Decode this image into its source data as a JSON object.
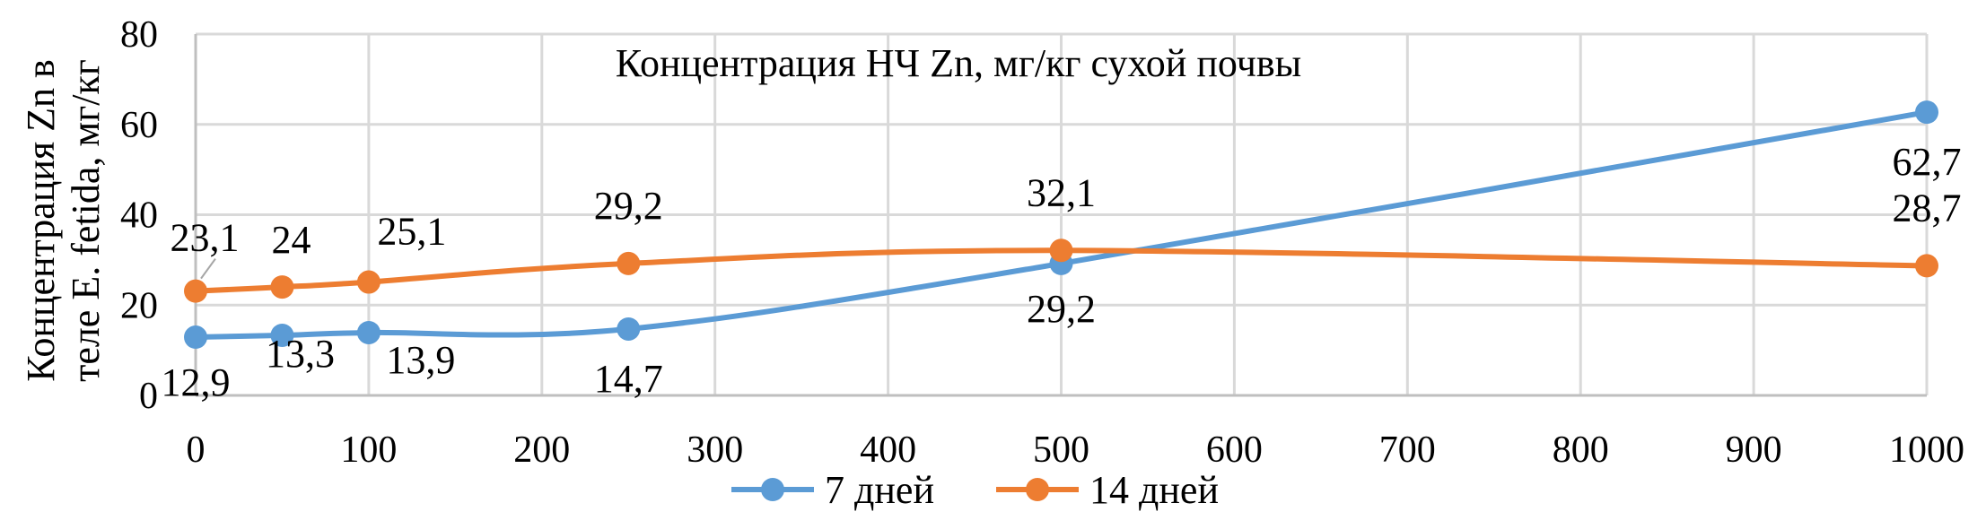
{
  "chart_data": {
    "type": "line",
    "xlabel": "Концентрация НЧ Zn, мг/кг сухой почвы",
    "ylabel": [
      "Концентрация Zn в",
      "теле E. fetida, мг/кг"
    ],
    "xlim": [
      0,
      1000
    ],
    "ylim": [
      0,
      80
    ],
    "xticks": [
      "0",
      "100",
      "200",
      "300",
      "400",
      "500",
      "600",
      "700",
      "800",
      "900",
      "1000"
    ],
    "yticks": [
      "0",
      "20",
      "40",
      "60",
      "80"
    ],
    "grid": true,
    "smooth": true,
    "legend_position": "bottom",
    "series": [
      {
        "name": "7 дней",
        "color": "#5b9bd5",
        "x": [
          0,
          50,
          100,
          250,
          500,
          1000
        ],
        "y": [
          12.9,
          13.3,
          13.9,
          14.7,
          29.2,
          62.7
        ],
        "labels": [
          "12,9",
          "13,3",
          "13,9",
          "14,7",
          "29,2",
          "62,7"
        ]
      },
      {
        "name": "14 дней",
        "color": "#ed7d31",
        "x": [
          0,
          50,
          100,
          250,
          500,
          1000
        ],
        "y": [
          23.1,
          24.0,
          25.1,
          29.2,
          32.1,
          28.7
        ],
        "labels": [
          "23,1",
          "24",
          "25,1",
          "29,2",
          "32,1",
          "28,7"
        ]
      }
    ]
  }
}
